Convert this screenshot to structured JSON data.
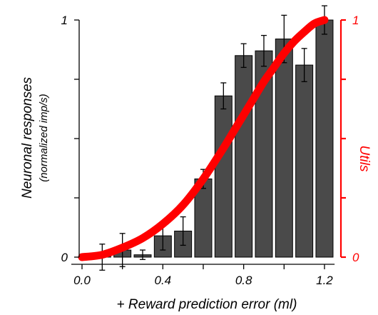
{
  "chart_data": {
    "type": "bar",
    "x": [
      0.1,
      0.2,
      0.3,
      0.4,
      0.5,
      0.6,
      0.7,
      0.8,
      0.9,
      1.0,
      1.1,
      1.2
    ],
    "values": [
      0.0,
      0.03,
      0.01,
      0.09,
      0.11,
      0.33,
      0.68,
      0.85,
      0.87,
      0.92,
      0.81,
      1.0
    ],
    "errors": [
      0.055,
      0.07,
      0.02,
      0.06,
      0.06,
      0.04,
      0.055,
      0.05,
      0.065,
      0.1,
      0.07,
      0.06
    ],
    "bar_color": "#4a4a4a",
    "xlabel": "+ Reward prediction error  (ml)",
    "ylabel": "Neuronal responses",
    "ylabel_sub": "(normalized imp/s)",
    "x_ticks": [
      "0.0",
      "0.4",
      "0.8",
      "1.2"
    ],
    "x_tick_values": [
      0.0,
      0.4,
      0.8,
      1.2
    ],
    "xlim": [
      0.0,
      1.25
    ],
    "y_ticks": [
      "0",
      "1"
    ],
    "y_tick_values": [
      0,
      1
    ],
    "ylim": [
      0,
      1
    ],
    "y2_label": "Utils",
    "y2_ticks": [
      "0",
      "1"
    ],
    "y2_color": "#ff0000",
    "utility_curve": {
      "color": "#ff0000",
      "x": [
        0.0,
        0.1,
        0.2,
        0.3,
        0.4,
        0.5,
        0.6,
        0.7,
        0.75,
        0.8,
        0.85,
        0.9,
        0.95,
        1.0,
        1.05,
        1.1,
        1.15,
        1.2
      ],
      "y": [
        0.0,
        0.01,
        0.04,
        0.08,
        0.14,
        0.22,
        0.33,
        0.46,
        0.53,
        0.6,
        0.67,
        0.74,
        0.8,
        0.86,
        0.91,
        0.95,
        0.985,
        1.0
      ]
    }
  }
}
